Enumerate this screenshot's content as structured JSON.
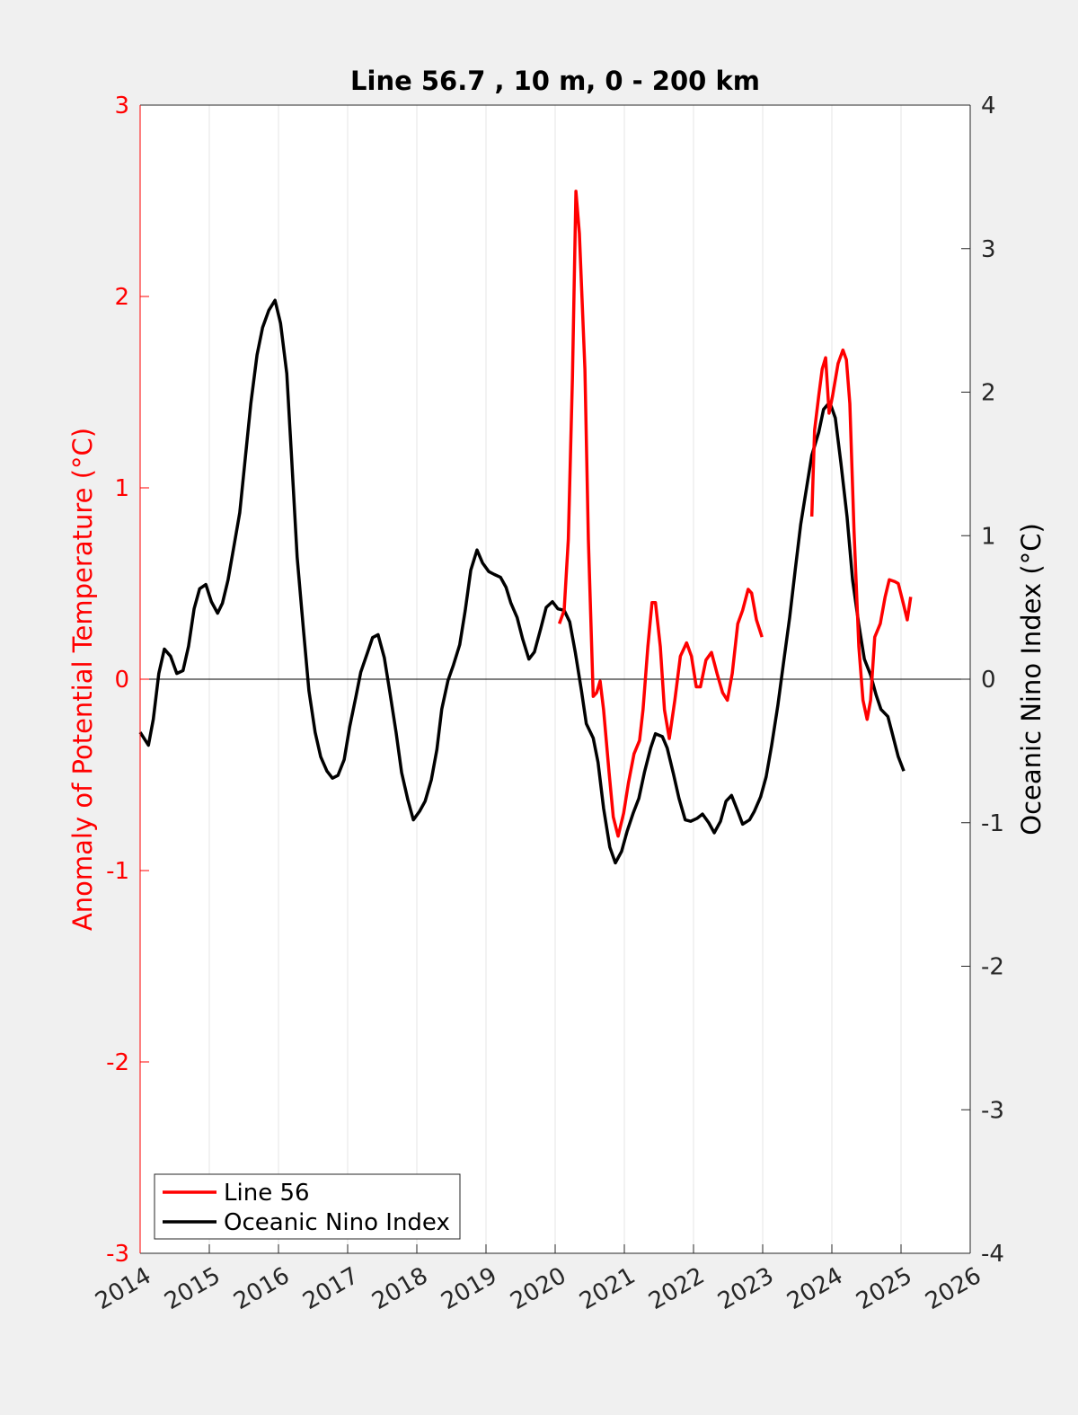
{
  "chart_data": {
    "type": "line",
    "title": "Line 56.7 , 10 m, 0 - 200 km",
    "ylabel": "Anomaly of Potential Temperature (°C)",
    "y2label": "Oceanic Nino Index (°C)",
    "xlim": [
      2014,
      2026
    ],
    "xticks": [
      2014,
      2015,
      2016,
      2017,
      2018,
      2019,
      2020,
      2021,
      2022,
      2023,
      2024,
      2025,
      2026
    ],
    "ylim": [
      -3,
      3
    ],
    "yticks": [
      -3,
      -2,
      -1,
      0,
      1,
      2,
      3
    ],
    "y2lim": [
      -4,
      4
    ],
    "y2ticks": [
      -4,
      -3,
      -2,
      -1,
      0,
      1,
      2,
      3,
      4
    ],
    "grid": "x",
    "legend": "lower left",
    "ycolor": "#ff0000",
    "series": [
      {
        "name": "Line 56",
        "color": "#ff0000",
        "axis": "y",
        "x": [
          2020.06,
          2020.13,
          2020.19,
          2020.25,
          2020.3,
          2020.35,
          2020.43,
          2020.48,
          2020.55,
          2020.6,
          2020.65,
          2020.7,
          2020.78,
          2020.84,
          2020.91,
          2020.99,
          2021.06,
          2021.14,
          2021.22,
          2021.27,
          2021.34,
          2021.4,
          2021.45,
          2021.52,
          2021.58,
          2021.65,
          2021.73,
          2021.81,
          2021.9,
          2021.97,
          2022.04,
          2022.1,
          2022.18,
          2022.26,
          2022.34,
          2022.42,
          2022.49,
          2022.56,
          2022.64,
          2022.71,
          2022.79,
          2022.84,
          2022.91,
          2022.99,
          null,
          2023.71,
          2023.75,
          2023.81,
          2023.86,
          2023.91,
          2023.96,
          2024.01,
          2024.09,
          2024.16,
          2024.21,
          2024.26,
          2024.32,
          2024.39,
          2024.45,
          2024.51,
          2024.56,
          2024.62,
          2024.7,
          2024.77,
          2024.83,
          2024.91,
          2024.96,
          2025.03,
          2025.09,
          2025.14
        ],
        "values": [
          0.29,
          0.36,
          0.73,
          1.58,
          2.55,
          2.33,
          1.62,
          0.73,
          -0.09,
          -0.07,
          -0.01,
          -0.16,
          -0.49,
          -0.72,
          -0.82,
          -0.7,
          -0.54,
          -0.39,
          -0.32,
          -0.16,
          0.17,
          0.4,
          0.4,
          0.17,
          -0.16,
          -0.31,
          -0.11,
          0.12,
          0.19,
          0.12,
          -0.04,
          -0.04,
          0.1,
          0.14,
          0.03,
          -0.07,
          -0.11,
          0.03,
          0.29,
          0.36,
          0.47,
          0.45,
          0.31,
          0.22,
          null,
          0.85,
          1.3,
          1.48,
          1.62,
          1.68,
          1.39,
          1.48,
          1.65,
          1.72,
          1.67,
          1.44,
          0.78,
          0.17,
          -0.11,
          -0.21,
          -0.11,
          0.22,
          0.29,
          0.43,
          0.52,
          0.51,
          0.5,
          0.4,
          0.31,
          0.43
        ]
      },
      {
        "name": "Oceanic Nino Index",
        "color": "#000000",
        "axis": "y2",
        "x": [
          2014.0,
          2014.12,
          2014.19,
          2014.27,
          2014.35,
          2014.44,
          2014.53,
          2014.62,
          2014.7,
          2014.78,
          2014.86,
          2014.95,
          2015.03,
          2015.12,
          2015.19,
          2015.27,
          2015.35,
          2015.44,
          2015.52,
          2015.6,
          2015.69,
          2015.77,
          2015.86,
          2015.95,
          2016.03,
          2016.12,
          2016.19,
          2016.27,
          2016.36,
          2016.44,
          2016.53,
          2016.61,
          2016.7,
          2016.78,
          2016.86,
          2016.95,
          2017.03,
          2017.12,
          2017.19,
          2017.29,
          2017.36,
          2017.44,
          2017.53,
          2017.61,
          2017.7,
          2017.78,
          2017.87,
          2017.95,
          2018.04,
          2018.12,
          2018.21,
          2018.29,
          2018.36,
          2018.45,
          2018.53,
          2018.62,
          2018.7,
          2018.78,
          2018.87,
          2018.95,
          2019.04,
          2019.12,
          2019.21,
          2019.29,
          2019.36,
          2019.45,
          2019.53,
          2019.62,
          2019.7,
          2019.79,
          2019.87,
          2019.96,
          2020.04,
          2020.13,
          2020.21,
          2020.29,
          2020.38,
          2020.45,
          2020.55,
          2020.62,
          2020.7,
          2020.79,
          2020.87,
          2020.96,
          2021.04,
          2021.13,
          2021.21,
          2021.29,
          2021.38,
          2021.45,
          2021.55,
          2021.62,
          2021.71,
          2021.79,
          2021.88,
          2021.96,
          2022.05,
          2022.13,
          2022.22,
          2022.3,
          2022.39,
          2022.47,
          2022.55,
          2022.64,
          2022.71,
          2022.81,
          2022.88,
          2022.97,
          2023.05,
          2023.13,
          2023.22,
          2023.3,
          2023.39,
          2023.47,
          2023.55,
          2023.64,
          2023.71,
          2023.81,
          2023.88,
          2023.97,
          2024.05,
          2024.13,
          2024.22,
          2024.3,
          2024.39,
          2024.47,
          2024.56,
          2024.64,
          2024.71,
          2024.81,
          2024.88,
          2024.96,
          2025.04
        ],
        "values": [
          -0.37,
          -0.46,
          -0.28,
          0.04,
          0.21,
          0.16,
          0.04,
          0.06,
          0.23,
          0.49,
          0.63,
          0.66,
          0.54,
          0.46,
          0.53,
          0.69,
          0.91,
          1.16,
          1.54,
          1.92,
          2.26,
          2.45,
          2.57,
          2.64,
          2.48,
          2.13,
          1.54,
          0.85,
          0.35,
          -0.08,
          -0.37,
          -0.54,
          -0.64,
          -0.69,
          -0.67,
          -0.56,
          -0.33,
          -0.12,
          0.05,
          0.19,
          0.29,
          0.31,
          0.15,
          -0.09,
          -0.37,
          -0.65,
          -0.84,
          -0.98,
          -0.92,
          -0.85,
          -0.7,
          -0.49,
          -0.21,
          -0.01,
          0.1,
          0.24,
          0.48,
          0.76,
          0.9,
          0.81,
          0.75,
          0.73,
          0.71,
          0.64,
          0.53,
          0.43,
          0.28,
          0.14,
          0.19,
          0.35,
          0.5,
          0.54,
          0.49,
          0.48,
          0.4,
          0.19,
          -0.08,
          -0.31,
          -0.41,
          -0.58,
          -0.9,
          -1.17,
          -1.28,
          -1.2,
          -1.06,
          -0.93,
          -0.83,
          -0.65,
          -0.48,
          -0.38,
          -0.4,
          -0.48,
          -0.66,
          -0.83,
          -0.98,
          -0.99,
          -0.97,
          -0.94,
          -1.0,
          -1.07,
          -0.99,
          -0.85,
          -0.81,
          -0.92,
          -1.01,
          -0.98,
          -0.92,
          -0.82,
          -0.68,
          -0.46,
          -0.18,
          0.11,
          0.43,
          0.76,
          1.08,
          1.35,
          1.56,
          1.72,
          1.88,
          1.93,
          1.82,
          1.51,
          1.13,
          0.69,
          0.38,
          0.14,
          0.03,
          -0.11,
          -0.21,
          -0.26,
          -0.39,
          -0.54,
          -0.64
        ]
      }
    ]
  }
}
